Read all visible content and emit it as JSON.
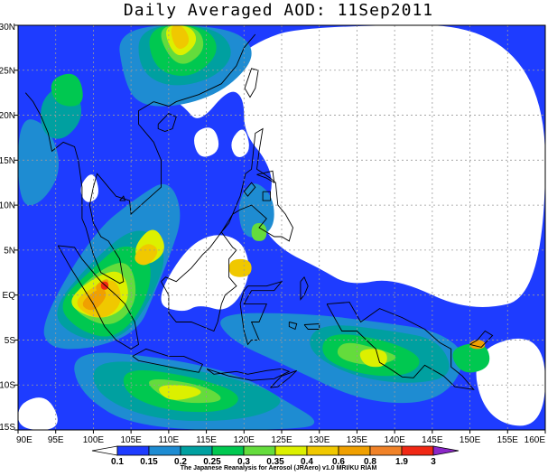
{
  "title": "Daily Averaged AOD: 11Sep2011",
  "lon_labels": [
    "90E",
    "95E",
    "100E",
    "105E",
    "110E",
    "115E",
    "120E",
    "125E",
    "130E",
    "135E",
    "140E",
    "145E",
    "150E",
    "155E",
    "160E"
  ],
  "lat_labels": [
    "30N",
    "25N",
    "20N",
    "15N",
    "10N",
    "5N",
    "EQ",
    "5S",
    "10S",
    "15S"
  ],
  "colorbar": {
    "levels": [
      "0.1",
      "0.15",
      "0.2",
      "0.25",
      "0.3",
      "0.35",
      "0.4",
      "0.6",
      "0.8",
      "1.9",
      "3"
    ],
    "colors": [
      "#ffffff",
      "#1e3cff",
      "#1e8cd2",
      "#00a0a0",
      "#00c850",
      "#64dc3c",
      "#dcf000",
      "#f0c800",
      "#f0a000",
      "#f08228",
      "#f02814",
      "#8c28c8"
    ]
  },
  "credit": "The Japanese Reanalysis for Aerosol (JRAero) v1.0 MRI/KU RIAM",
  "chart_data": {
    "type": "heatmap",
    "title": "Daily Averaged AOD: 11Sep2011",
    "xlim": [
      90,
      160
    ],
    "ylim": [
      -15,
      30
    ],
    "grid": true,
    "color_levels": [
      0.1,
      0.15,
      0.2,
      0.25,
      0.3,
      0.35,
      0.4,
      0.6,
      0.8,
      1.9,
      3
    ]
  }
}
